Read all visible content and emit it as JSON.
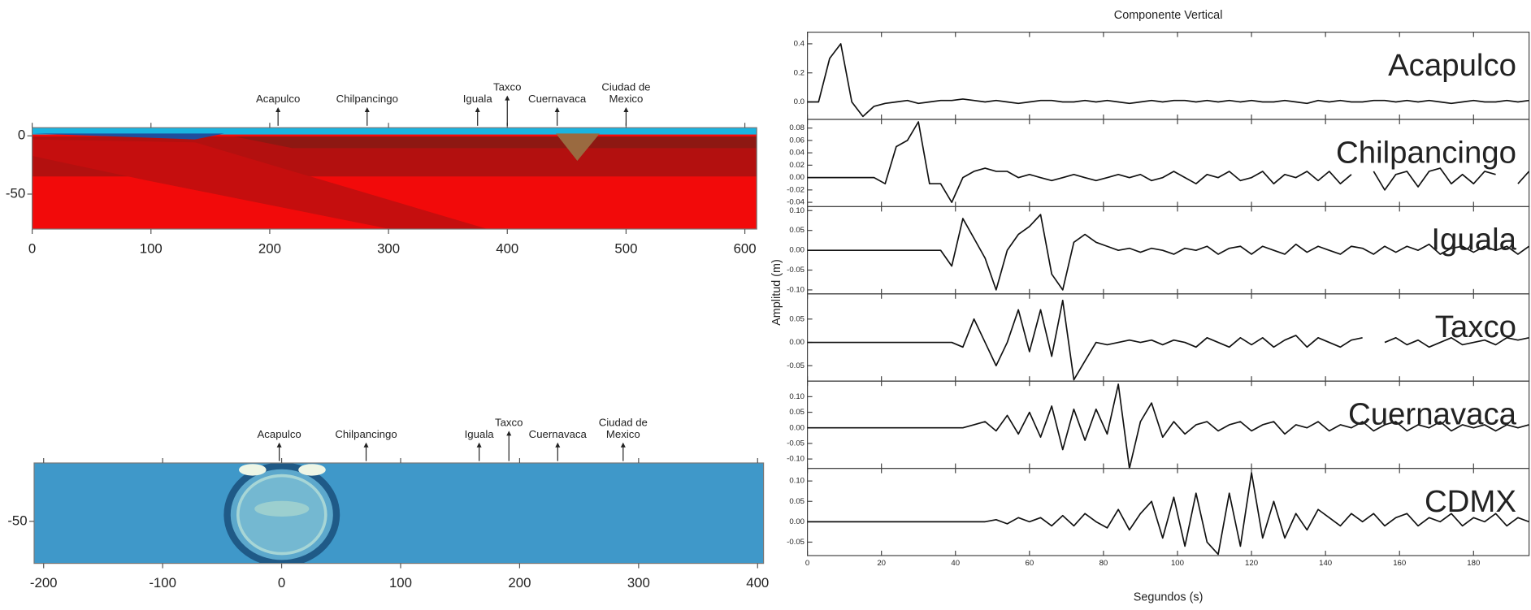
{
  "chart_data": [
    {
      "type": "section",
      "xlim": [
        0,
        610
      ],
      "ylim": [
        -80,
        7
      ],
      "xticks": [
        0,
        100,
        200,
        300,
        400,
        500,
        600
      ],
      "yticks": [
        0,
        -50
      ],
      "stations": [
        {
          "name": "Acapulco",
          "x": 207
        },
        {
          "name": "Chilpancingo",
          "x": 282
        },
        {
          "name": "Iguala",
          "x": 375
        },
        {
          "name": "Taxco",
          "x": 400
        },
        {
          "name": "Cuernavaca",
          "x": 442
        },
        {
          "name": "Ciudad de Mexico",
          "x": 500
        }
      ]
    },
    {
      "type": "snapshot",
      "xlim": [
        -208,
        405
      ],
      "ylim": [
        -86,
        0
      ],
      "xticks": [
        -200,
        -100,
        0,
        100,
        200,
        300,
        400
      ],
      "yticks": [
        -50
      ],
      "stations": [
        {
          "name": "Acapulco",
          "x": -2
        },
        {
          "name": "Chilpancingo",
          "x": 71
        },
        {
          "name": "Iguala",
          "x": 166
        },
        {
          "name": "Taxco",
          "x": 191
        },
        {
          "name": "Cuernavaca",
          "x": 232
        },
        {
          "name": "Ciudad de Mexico",
          "x": 287
        }
      ]
    },
    {
      "type": "seismogram",
      "title": "Componente Vertical",
      "xlabel": "Segundos (s)",
      "ylabel": "Amplitud (m)",
      "xlim": [
        0,
        195
      ],
      "xticks": [
        0,
        20,
        40,
        60,
        80,
        100,
        120,
        140,
        160,
        180
      ],
      "x": [
        0,
        3,
        6,
        9,
        12,
        15,
        18,
        21,
        24,
        27,
        30,
        33,
        36,
        39,
        42,
        45,
        48,
        51,
        54,
        57,
        60,
        63,
        66,
        69,
        72,
        75,
        78,
        81,
        84,
        87,
        90,
        93,
        96,
        99,
        102,
        105,
        108,
        111,
        114,
        117,
        120,
        123,
        126,
        129,
        132,
        135,
        138,
        141,
        144,
        147,
        150,
        153,
        156,
        159,
        162,
        165,
        168,
        171,
        174,
        177,
        180,
        183,
        186,
        189,
        192,
        195
      ],
      "series": [
        {
          "name": "Acapulco",
          "color": "#111111",
          "ylim": [
            -0.12,
            0.48
          ],
          "yticks": [
            {
              "value": 0,
              "label": "0.0"
            },
            0.2,
            0.4
          ],
          "values": [
            0,
            0,
            0.3,
            0.4,
            0,
            -0.1,
            -0.03,
            -0.01,
            0,
            0.01,
            -0.01,
            0,
            0.01,
            0.01,
            0.02,
            0.01,
            0,
            0.01,
            0,
            -0.01,
            0,
            0.01,
            0.01,
            0,
            0,
            0.01,
            0,
            0.01,
            0,
            -0.01,
            0,
            0.01,
            0,
            0.01,
            0.01,
            0,
            0.01,
            0,
            0.01,
            0,
            0.01,
            0,
            0,
            0.01,
            0,
            -0.01,
            0.01,
            0,
            0.01,
            0,
            0,
            0.01,
            0.01,
            0,
            0.01,
            0,
            0.01,
            0,
            -0.01,
            0,
            0.01,
            0,
            0,
            0.01,
            0,
            0.01
          ]
        },
        {
          "name": "Chilpancingo",
          "color": "#111111",
          "ylim": [
            -0.047,
            0.094
          ],
          "yticks": [
            -0.04,
            -0.02,
            {
              "value": 0,
              "label": "0.00"
            },
            0.02,
            0.04,
            0.06,
            0.08
          ],
          "values": [
            0,
            0,
            0,
            0,
            0,
            0,
            0,
            -0.01,
            0.05,
            0.06,
            0.09,
            -0.01,
            -0.01,
            -0.04,
            0,
            0.01,
            0.015,
            0.01,
            0.01,
            0,
            0.005,
            0,
            -0.005,
            0,
            0.005,
            0,
            -0.005,
            0,
            0.005,
            0,
            0.005,
            -0.005,
            0,
            0.01,
            0,
            -0.01,
            0.005,
            0,
            0.01,
            -0.005,
            0,
            0.01,
            -0.01,
            0.005,
            0,
            0.01,
            -0.005,
            0.01,
            -0.01,
            0.005,
            null,
            0.01,
            -0.02,
            0.005,
            0.01,
            -0.015,
            0.01,
            0.015,
            -0.01,
            0.005,
            -0.01,
            0.01,
            0.005,
            null,
            -0.01,
            0.01
          ]
        },
        {
          "name": "Iguala",
          "color": "#111111",
          "ylim": [
            -0.11,
            0.11
          ],
          "yticks": [
            {
              "value": -0.1,
              "label": "-0.10"
            },
            -0.05,
            {
              "value": 0,
              "label": "0.00"
            },
            0.05,
            {
              "value": 0.1,
              "label": "0.10"
            }
          ],
          "values": [
            0,
            0,
            0,
            0,
            0,
            0,
            0,
            0,
            0,
            0,
            0,
            0,
            0,
            -0.04,
            0.08,
            0.03,
            -0.02,
            -0.1,
            0,
            0.04,
            0.06,
            0.09,
            -0.06,
            -0.1,
            0.02,
            0.04,
            0.02,
            0.01,
            0,
            0.005,
            -0.005,
            0.005,
            0,
            -0.01,
            0.005,
            0,
            0.01,
            -0.01,
            0.005,
            0.01,
            -0.01,
            0.01,
            0,
            -0.01,
            0.015,
            -0.005,
            0.01,
            0,
            -0.01,
            0.01,
            0.005,
            -0.01,
            0.01,
            -0.005,
            0.01,
            0,
            0.015,
            -0.01,
            0.005,
            0.01,
            -0.005,
            0.01,
            0,
            0.01,
            -0.01,
            0.01
          ]
        },
        {
          "name": "Taxco",
          "color": "#111111",
          "ylim": [
            -0.083,
            0.104
          ],
          "yticks": [
            -0.05,
            {
              "value": 0,
              "label": "0.00"
            },
            0.05
          ],
          "values": [
            0,
            0,
            0,
            0,
            0,
            0,
            0,
            0,
            0,
            0,
            0,
            0,
            0,
            0,
            -0.01,
            0.05,
            0,
            -0.05,
            0,
            0.07,
            -0.02,
            0.07,
            -0.03,
            0.09,
            -0.08,
            -0.04,
            0,
            -0.005,
            0,
            0.005,
            0,
            0.005,
            -0.005,
            0.005,
            0,
            -0.01,
            0.01,
            0,
            -0.01,
            0.01,
            -0.005,
            0.01,
            -0.01,
            0.005,
            0.015,
            -0.01,
            0.01,
            0,
            -0.01,
            0.005,
            0.01,
            null,
            0,
            0.01,
            -0.005,
            0.005,
            -0.01,
            0,
            0.01,
            -0.005,
            0,
            0.005,
            -0.005,
            0.01,
            0.005,
            0.01
          ]
        },
        {
          "name": "Cuernavaca",
          "color": "#111111",
          "ylim": [
            -0.13,
            0.15
          ],
          "yticks": [
            {
              "value": -0.1,
              "label": "-0.10"
            },
            -0.05,
            {
              "value": 0,
              "label": "0.00"
            },
            0.05,
            {
              "value": 0.1,
              "label": "0.10"
            }
          ],
          "values": [
            0,
            0,
            0,
            0,
            0,
            0,
            0,
            0,
            0,
            0,
            0,
            0,
            0,
            0,
            0,
            0.01,
            0.02,
            -0.01,
            0.04,
            -0.02,
            0.05,
            -0.03,
            0.07,
            -0.07,
            0.06,
            -0.04,
            0.06,
            -0.02,
            0.14,
            -0.13,
            0.02,
            0.08,
            -0.03,
            0.02,
            -0.02,
            0.01,
            0.02,
            -0.01,
            0.01,
            0.02,
            -0.01,
            0.01,
            0.02,
            -0.02,
            0.01,
            0,
            0.02,
            -0.01,
            0.01,
            0,
            0.02,
            -0.01,
            0.01,
            0.02,
            -0.01,
            0.01,
            0,
            0.02,
            -0.01,
            0.01,
            0,
            0.01,
            -0.01,
            0.01,
            0,
            0.01
          ]
        },
        {
          "name": "CDMX",
          "color": "#111111",
          "ylim": [
            -0.083,
            0.131
          ],
          "yticks": [
            -0.05,
            {
              "value": 0,
              "label": "0.00"
            },
            0.05,
            {
              "value": 0.1,
              "label": "0.10"
            }
          ],
          "values": [
            0,
            0,
            0,
            0,
            0,
            0,
            0,
            0,
            0,
            0,
            0,
            0,
            0,
            0,
            0,
            0,
            0,
            0.005,
            -0.005,
            0.01,
            0,
            0.01,
            -0.01,
            0.015,
            -0.01,
            0.02,
            0,
            -0.015,
            0.03,
            -0.02,
            0.02,
            0.05,
            -0.04,
            0.06,
            -0.06,
            0.07,
            -0.05,
            -0.08,
            0.07,
            -0.06,
            0.12,
            -0.04,
            0.05,
            -0.04,
            0.02,
            -0.02,
            0.03,
            0.01,
            -0.01,
            0.02,
            0,
            0.02,
            -0.01,
            0.01,
            0.02,
            -0.01,
            0.01,
            0,
            0.02,
            -0.01,
            0.01,
            0,
            0.02,
            -0.01,
            0.01,
            0
          ]
        }
      ]
    }
  ]
}
